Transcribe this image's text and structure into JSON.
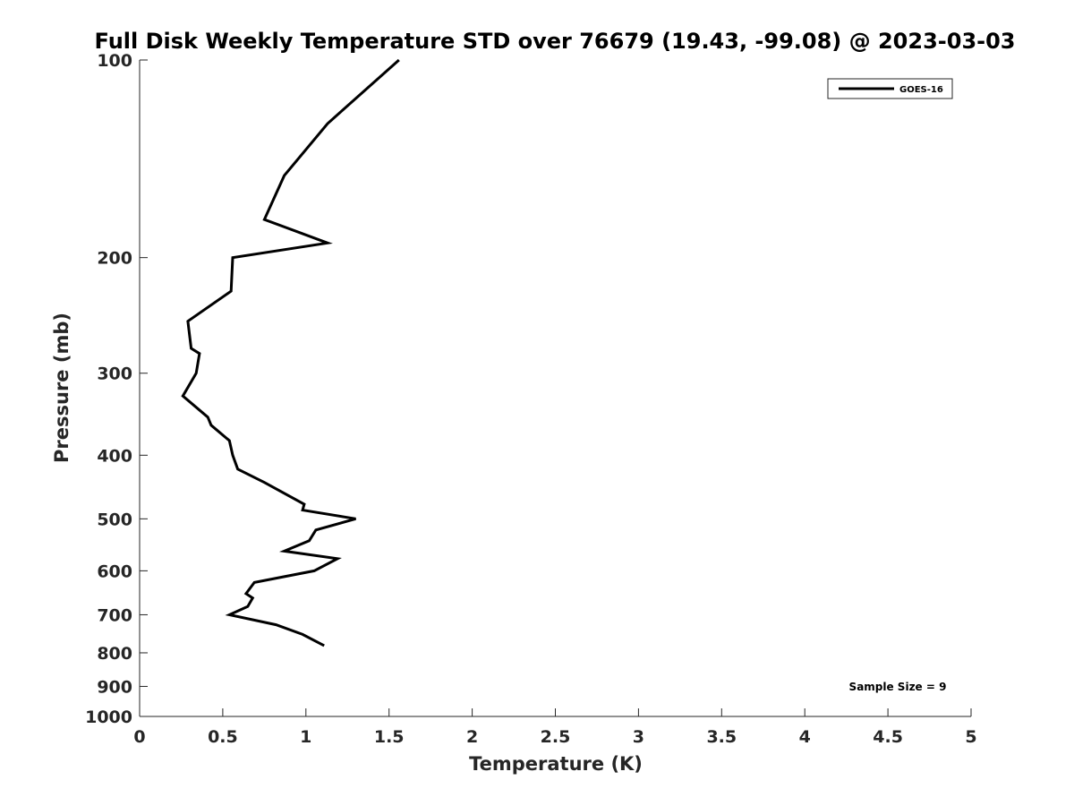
{
  "chart_data": {
    "type": "line",
    "title": "Full Disk Weekly Temperature STD over 76679 (19.43, -99.08) @ 2023-03-03",
    "xlabel": "Temperature (K)",
    "ylabel": "Pressure (mb)",
    "xlim": [
      0,
      5
    ],
    "ylim": [
      100,
      1000
    ],
    "yscale": "log",
    "y_reversed": true,
    "grid": false,
    "x_ticks": [
      "0",
      "0.5",
      "1",
      "1.5",
      "2",
      "2.5",
      "3",
      "3.5",
      "4",
      "4.5",
      "5"
    ],
    "y_ticks": [
      "100",
      "200",
      "300",
      "400",
      "500",
      "600",
      "700",
      "800",
      "900",
      "1000"
    ],
    "legend_position": "top-right",
    "annotation": "Sample Size = 9",
    "series": [
      {
        "name": "GOES-16",
        "color": "#000000",
        "points": [
          [
            1.56,
            100
          ],
          [
            1.13,
            125
          ],
          [
            0.87,
            150
          ],
          [
            0.75,
            175
          ],
          [
            1.13,
            190
          ],
          [
            0.56,
            200
          ],
          [
            0.55,
            225
          ],
          [
            0.29,
            250
          ],
          [
            0.31,
            275
          ],
          [
            0.36,
            280
          ],
          [
            0.34,
            300
          ],
          [
            0.26,
            325
          ],
          [
            0.41,
            350
          ],
          [
            0.43,
            360
          ],
          [
            0.54,
            380
          ],
          [
            0.56,
            400
          ],
          [
            0.59,
            420
          ],
          [
            0.75,
            440
          ],
          [
            0.99,
            475
          ],
          [
            0.98,
            485
          ],
          [
            1.3,
            500
          ],
          [
            1.06,
            520
          ],
          [
            1.02,
            540
          ],
          [
            0.87,
            560
          ],
          [
            1.19,
            575
          ],
          [
            1.05,
            600
          ],
          [
            0.69,
            625
          ],
          [
            0.64,
            650
          ],
          [
            0.68,
            660
          ],
          [
            0.65,
            680
          ],
          [
            0.54,
            700
          ],
          [
            0.82,
            725
          ],
          [
            0.98,
            750
          ],
          [
            1.11,
            780
          ]
        ]
      }
    ]
  }
}
